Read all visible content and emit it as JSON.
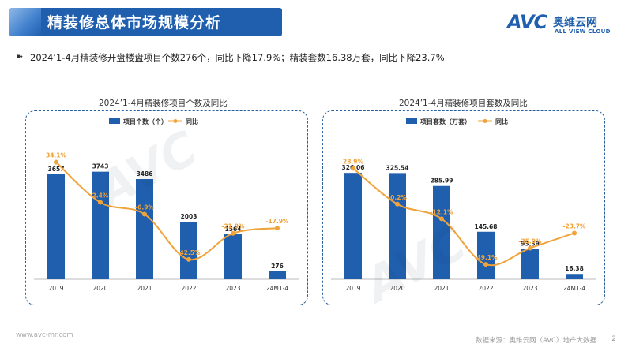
{
  "header": {
    "title": "精装修总体市场规模分析"
  },
  "logo": {
    "mark": "AVC",
    "name_cn": "奥维云网",
    "name_en": "ALL VIEW CLOUD"
  },
  "summary": {
    "arrow": "➽",
    "text": "2024’1-4月精装修开盘楼盘项目个数276个，同比下降17.9%；精装套数16.38万套，同比下降23.7%"
  },
  "footer": {
    "url": "www.avc-mr.com",
    "source": "数据来源：奥维云网（AVC）地产大数据",
    "page": "2"
  },
  "colors": {
    "bar": "#1f5fae",
    "line": "#f0a33a",
    "header": "#1f5fae"
  },
  "chart_data": [
    {
      "type": "bar",
      "title": "2024’1-4月精装修项目个数及同比",
      "categories": [
        "2019",
        "2020",
        "2021",
        "2022",
        "2023",
        "24M1-4"
      ],
      "bar_labels": [
        "3657",
        "3743",
        "3486",
        "2003",
        "1564",
        "276"
      ],
      "line_labels": [
        "34.1%",
        "2.4%",
        "-6.9%",
        "-42.5%",
        "-21.9%",
        "-17.9%"
      ],
      "series": [
        {
          "name": "项目个数（个）",
          "type": "bar",
          "values": [
            3657,
            3743,
            3486,
            2003,
            1564,
            276
          ]
        },
        {
          "name": "同比",
          "type": "line",
          "values": [
            34.1,
            2.4,
            -6.9,
            -42.5,
            -21.9,
            -17.9
          ]
        }
      ],
      "legend": "top-left",
      "bar_max": 4200,
      "line_range": [
        -55,
        40
      ]
    },
    {
      "type": "bar",
      "title": "2024’1-4月精装修项目套数及同比",
      "categories": [
        "2019",
        "2020",
        "2021",
        "2022",
        "2023",
        "24M1-4"
      ],
      "bar_labels": [
        "326.06",
        "325.54",
        "285.99",
        "145.68",
        "93.39",
        "16.38"
      ],
      "line_labels": [
        "28.9%",
        "-0.2%",
        "-12.1%",
        "-49.1%",
        "-35.9%",
        "-23.7%"
      ],
      "series": [
        {
          "name": "项目套数（万套）",
          "type": "bar",
          "values": [
            326.06,
            325.54,
            285.99,
            145.68,
            93.39,
            16.38
          ]
        },
        {
          "name": "同比",
          "type": "line",
          "values": [
            28.9,
            -0.2,
            -12.1,
            -49.1,
            -35.9,
            -23.7
          ]
        }
      ],
      "legend": "top-left",
      "bar_max": 370,
      "line_range": [
        -58,
        40
      ]
    }
  ]
}
